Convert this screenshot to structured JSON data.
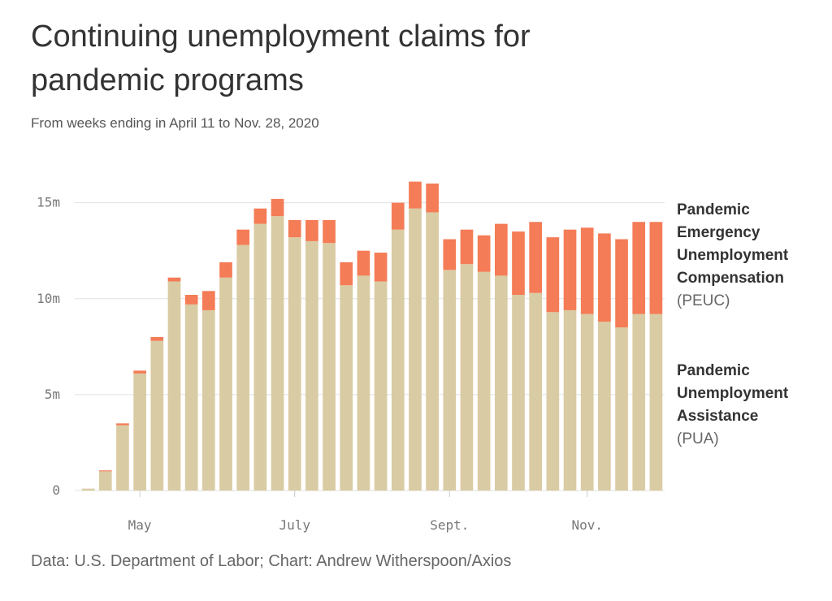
{
  "title": "Continuing unemployment claims for pandemic programs",
  "subtitle": "From weeks ending in April 11 to Nov. 28, 2020",
  "source": "Data: U.S. Department of Labor; Chart: Andrew Witherspoon/Axios",
  "colors": {
    "pua": "#d9cba3",
    "peuc": "#f47c56",
    "grid": "#e0e0e0",
    "axis_text": "#777777"
  },
  "legend": {
    "peuc": {
      "name": "Pandemic Emergency Unemployment Compensation",
      "abbr": "(PEUC)"
    },
    "pua": {
      "name": "Pandemic Unemployment Assistance",
      "abbr": "(PUA)"
    }
  },
  "chart_data": {
    "type": "bar",
    "stacked": true,
    "title": "Continuing unemployment claims for pandemic programs",
    "subtitle": "From weeks ending in April 11 to Nov. 28, 2020",
    "x": [
      "2020-04-11",
      "2020-04-18",
      "2020-04-25",
      "2020-05-02",
      "2020-05-09",
      "2020-05-16",
      "2020-05-23",
      "2020-05-30",
      "2020-06-06",
      "2020-06-13",
      "2020-06-20",
      "2020-06-27",
      "2020-07-04",
      "2020-07-11",
      "2020-07-18",
      "2020-07-25",
      "2020-08-01",
      "2020-08-08",
      "2020-08-15",
      "2020-08-22",
      "2020-08-29",
      "2020-09-05",
      "2020-09-12",
      "2020-09-19",
      "2020-09-26",
      "2020-10-03",
      "2020-10-10",
      "2020-10-17",
      "2020-10-24",
      "2020-10-31",
      "2020-11-07",
      "2020-11-14",
      "2020-11-21",
      "2020-11-28"
    ],
    "x_tick_labels": [
      {
        "label": "May",
        "x": "2020-05-02"
      },
      {
        "label": "July",
        "x": "2020-07-04"
      },
      {
        "label": "Sept.",
        "x": "2020-09-05"
      },
      {
        "label": "Nov.",
        "x": "2020-10-31"
      }
    ],
    "y_tick_labels": [
      "0",
      "5m",
      "10m",
      "15m"
    ],
    "y_ticks": [
      0,
      5000000,
      10000000,
      15000000
    ],
    "ylim": [
      0,
      16000000
    ],
    "grid": true,
    "legend_position": "right",
    "series": [
      {
        "name": "Pandemic Unemployment Assistance",
        "color": "#d9cba3",
        "values": [
          100000,
          1000000,
          3400000,
          6100000,
          7800000,
          10900000,
          9700000,
          9400000,
          11100000,
          12800000,
          13900000,
          14300000,
          13200000,
          13000000,
          12900000,
          10700000,
          11200000,
          10900000,
          13600000,
          14700000,
          14500000,
          11500000,
          11800000,
          11400000,
          11200000,
          10200000,
          10300000,
          9300000,
          9400000,
          9200000,
          8800000,
          8500000,
          9200000,
          9200000
        ]
      },
      {
        "name": "Pandemic Emergency Unemployment Compensation",
        "color": "#f47c56",
        "values": [
          0,
          50000,
          100000,
          150000,
          200000,
          200000,
          500000,
          1000000,
          800000,
          800000,
          800000,
          900000,
          900000,
          1100000,
          1200000,
          1200000,
          1300000,
          1500000,
          1400000,
          1400000,
          1500000,
          1600000,
          1800000,
          1900000,
          2700000,
          3300000,
          3700000,
          3900000,
          4200000,
          4500000,
          4600000,
          4600000,
          4800000,
          4800000
        ]
      }
    ]
  }
}
